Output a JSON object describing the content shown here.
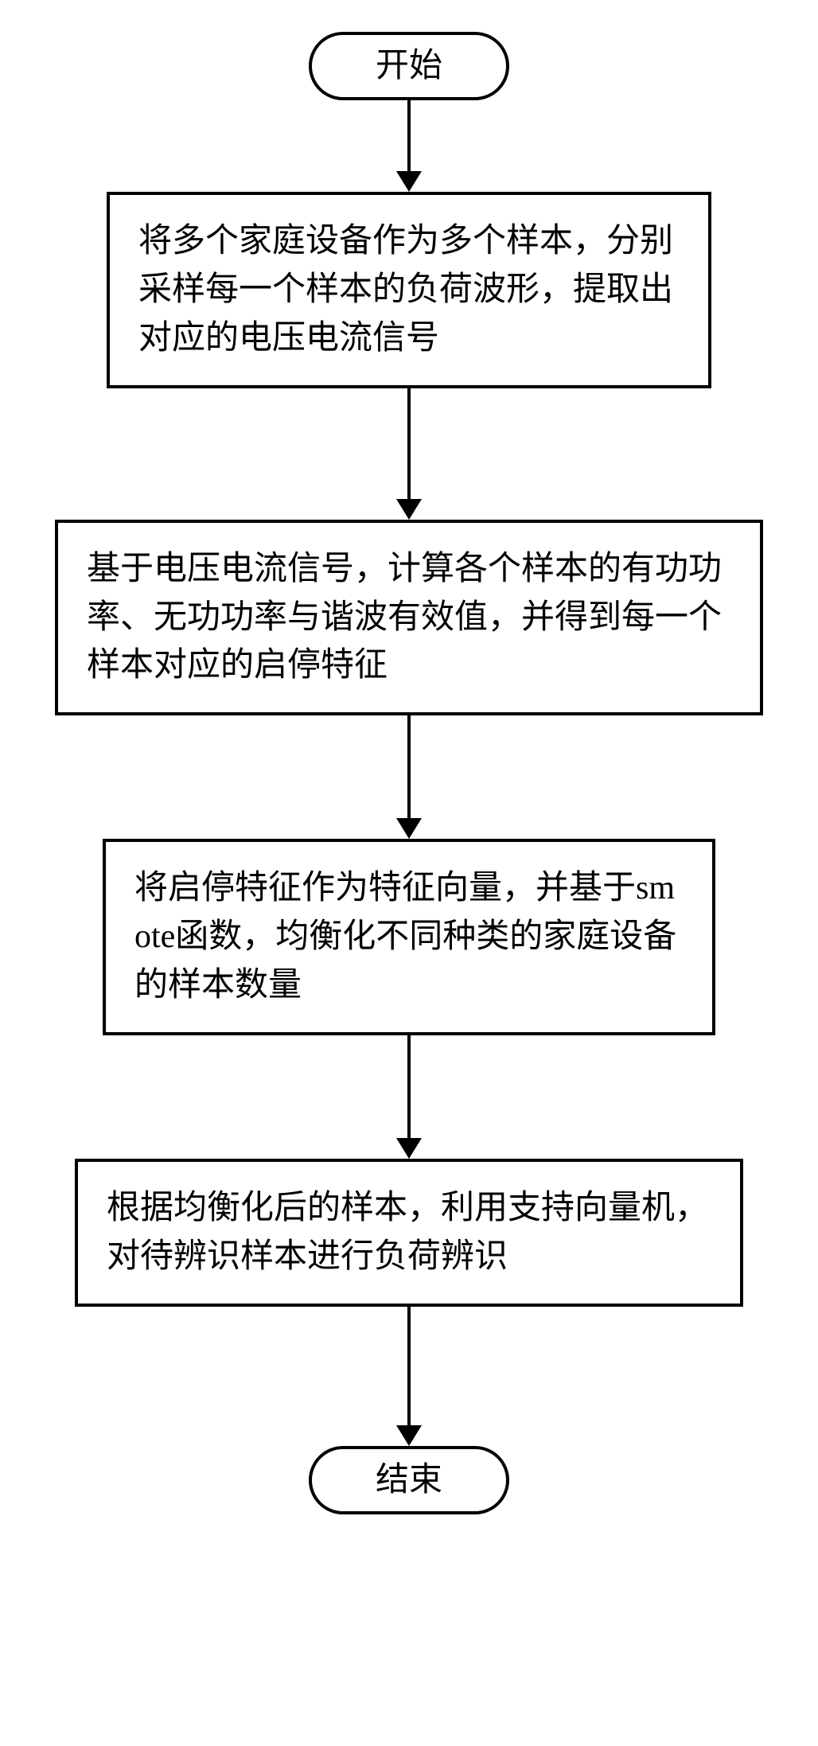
{
  "flowchart": {
    "type": "flowchart",
    "background_color": "#ffffff",
    "border_color": "#000000",
    "text_color": "#000000",
    "border_width": 4,
    "font_size": 42,
    "font_family": "SimSun",
    "arrow_heights": [
      90,
      140,
      130,
      130,
      150
    ],
    "nodes": {
      "start": {
        "shape": "terminator",
        "label": "开始"
      },
      "step1": {
        "shape": "process",
        "label": "将多个家庭设备作为多个样本，分别采样每一个样本的负荷波形，提取出对应的电压电流信号"
      },
      "step2": {
        "shape": "process",
        "label": "基于电压电流信号，计算各个样本的有功功率、无功功率与谐波有效值，并得到每一个样本对应的启停特征"
      },
      "step3": {
        "shape": "process",
        "label": "将启停特征作为特征向量，并基于smote函数，均衡化不同种类的家庭设备的样本数量"
      },
      "step4": {
        "shape": "process",
        "label": "根据均衡化后的样本，利用支持向量机，对待辨识样本进行负荷辨识"
      },
      "end": {
        "shape": "terminator",
        "label": "结束"
      }
    },
    "edges": [
      {
        "from": "start",
        "to": "step1"
      },
      {
        "from": "step1",
        "to": "step2"
      },
      {
        "from": "step2",
        "to": "step3"
      },
      {
        "from": "step3",
        "to": "step4"
      },
      {
        "from": "step4",
        "to": "end"
      }
    ]
  }
}
